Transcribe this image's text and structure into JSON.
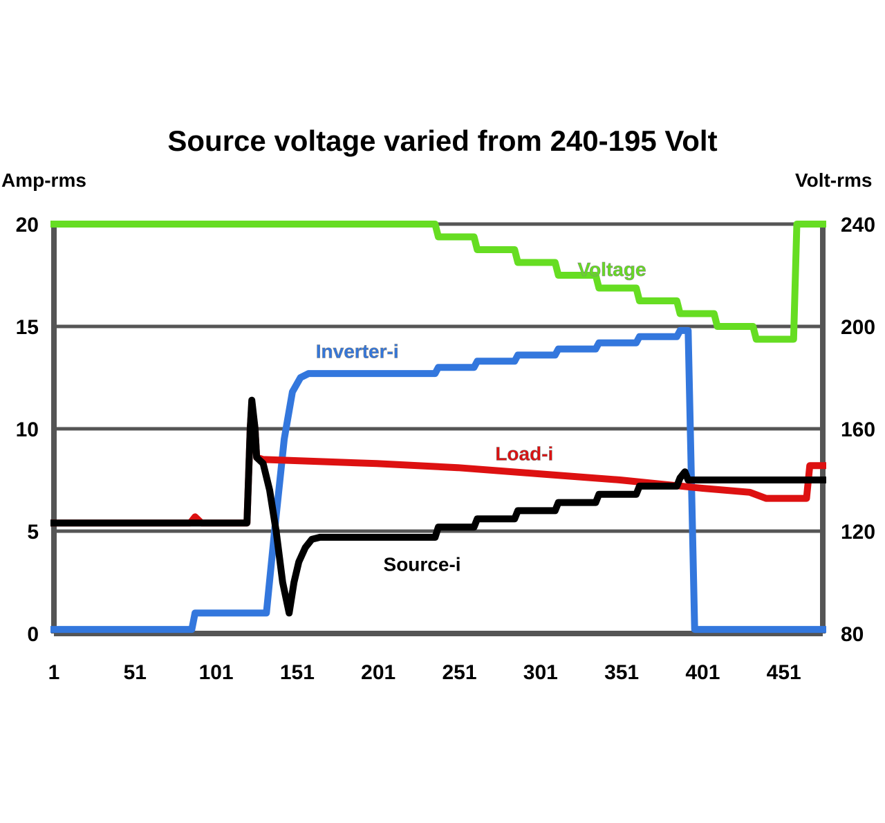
{
  "chart_data": {
    "type": "line",
    "title": "Source voltage varied from 240-195 Volt",
    "ylabel_left": "Amp-rms",
    "ylabel_right": "Volt-rms",
    "xlim": [
      1,
      475
    ],
    "ylim_left": [
      0,
      20
    ],
    "ylim_right": [
      80,
      240
    ],
    "x_ticks": [
      "1",
      "51",
      "101",
      "151",
      "201",
      "251",
      "301",
      "351",
      "401",
      "451"
    ],
    "y_ticks_left": [
      "0",
      "5",
      "10",
      "15",
      "20"
    ],
    "y_ticks_right": [
      "80",
      "120",
      "160",
      "200",
      "240"
    ],
    "grid": "horizontal",
    "series": [
      {
        "name": "Voltage",
        "axis": "right",
        "color": "#66dd22",
        "x": [
          1,
          236,
          238,
          260,
          262,
          285,
          287,
          310,
          312,
          335,
          337,
          360,
          362,
          385,
          387,
          408,
          410,
          432,
          434,
          457,
          459,
          475
        ],
        "y": [
          240,
          240,
          235,
          235,
          230,
          230,
          225,
          225,
          220,
          220,
          215,
          215,
          210,
          210,
          205,
          205,
          200,
          200,
          195,
          195,
          240,
          240
        ]
      },
      {
        "name": "Inverter-i",
        "axis": "left",
        "color": "#3377dd",
        "x": [
          1,
          86,
          88,
          132,
          137,
          143,
          148,
          153,
          158,
          165,
          236,
          238,
          260,
          262,
          285,
          287,
          310,
          312,
          335,
          337,
          360,
          362,
          385,
          387,
          392,
          396,
          475
        ],
        "y": [
          0.2,
          0.2,
          1,
          1,
          5,
          9.5,
          11.8,
          12.5,
          12.7,
          12.7,
          12.7,
          13,
          13,
          13.3,
          13.3,
          13.6,
          13.6,
          13.9,
          13.9,
          14.2,
          14.2,
          14.5,
          14.5,
          14.8,
          14.8,
          0.2,
          0.2
        ]
      },
      {
        "name": "Load-i",
        "axis": "left",
        "color": "#dd1111",
        "x": [
          1,
          85,
          88,
          92,
          120,
          122,
          123,
          125,
          126,
          130,
          200,
          250,
          300,
          350,
          400,
          430,
          440,
          465,
          467,
          475
        ],
        "y": [
          5.4,
          5.4,
          5.7,
          5.4,
          5.4,
          10,
          11.2,
          10,
          8.6,
          8.5,
          8.3,
          8.1,
          7.8,
          7.5,
          7.1,
          6.9,
          6.6,
          6.6,
          8.2,
          8.2
        ]
      },
      {
        "name": "Source-i",
        "axis": "left",
        "color": "#000000",
        "x": [
          1,
          120,
          122,
          123,
          125,
          126,
          130,
          134,
          138,
          142,
          146,
          149,
          152,
          156,
          160,
          165,
          236,
          238,
          260,
          262,
          285,
          287,
          310,
          312,
          335,
          337,
          360,
          362,
          385,
          387,
          390,
          392,
          475
        ],
        "y": [
          5.4,
          5.4,
          10,
          11.4,
          10,
          8.6,
          8.3,
          7,
          5,
          2.5,
          1,
          2.5,
          3.5,
          4.2,
          4.6,
          4.7,
          4.7,
          5.2,
          5.2,
          5.6,
          5.6,
          6,
          6,
          6.4,
          6.4,
          6.8,
          6.8,
          7.2,
          7.2,
          7.6,
          7.9,
          7.5,
          7.5
        ]
      }
    ],
    "series_labels": [
      {
        "text": "Voltage",
        "x": 345,
        "y": 17.8
      },
      {
        "text": "Inverter-i",
        "x": 188,
        "y": 13.8
      },
      {
        "text": "Load-i",
        "x": 291,
        "y": 8.8
      },
      {
        "text": "Source-i",
        "x": 228,
        "y": 3.4
      }
    ]
  }
}
